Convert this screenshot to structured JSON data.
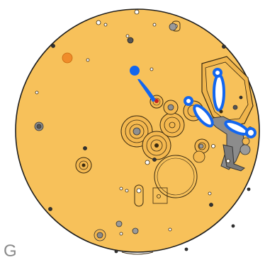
{
  "diagram": {
    "corner_letter": "G",
    "colors": {
      "plate": "#f7c15a",
      "plate_edge": "#1e1e1e",
      "outline": "#3a2a10",
      "pointer_blue": "#1266ef",
      "marker_orange": "#f08c2a",
      "marker_red": "#c8201e",
      "steel_part": "#9a9a9a",
      "steel_dark": "#6e6e6e"
    },
    "icons": [
      "movement-plate",
      "pointer-pin-icon",
      "marker-dot-icon"
    ]
  }
}
